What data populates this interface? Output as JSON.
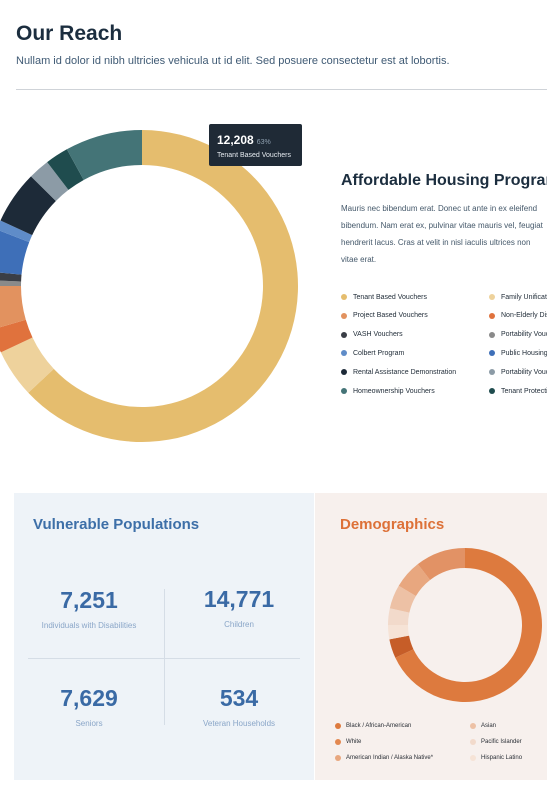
{
  "header": {
    "title": "Our Reach",
    "subtitle": "Nullam id dolor id nibh ultricies vehicula ut id elit. Sed posuere consectetur est at lobortis."
  },
  "tooltip": {
    "value": "12,208",
    "percent": "63%",
    "label": "Tenant Based Vouchers"
  },
  "program": {
    "title": "Affordable Housing Programs",
    "body_lines": [
      "Mauris nec bibendum erat. Donec ut ante in ex eleifend",
      "bibendum. Nam erat ex, pulvinar vitae mauris vel, feugiat",
      "hendrerit lacus. Cras at velit in nisl iaculis ultrices non",
      "vitae erat."
    ],
    "legend": [
      {
        "label": "Tenant Based Vouchers",
        "color": "#e5bd6e"
      },
      {
        "label": "Family Unification",
        "color": "#eed29c"
      },
      {
        "label": "Project Based Vouchers",
        "color": "#e2925f"
      },
      {
        "label": "Non-Elderly Disabled",
        "color": "#e0723d"
      },
      {
        "label": "VASH Vouchers",
        "color": "#3a3e46"
      },
      {
        "label": "Portability Vouchers",
        "color": "#8a8a8a"
      },
      {
        "label": "Colbert Program",
        "color": "#5f8cc8"
      },
      {
        "label": "Public Housing",
        "color": "#3e6fb8"
      },
      {
        "label": "Rental Assistance Demonstration",
        "color": "#1d2a38"
      },
      {
        "label": "Portability Vouchers",
        "color": "#8c9ba6"
      },
      {
        "label": "Homeownership Vouchers",
        "color": "#447477"
      },
      {
        "label": "Tenant Protection",
        "color": "#1f4c4e"
      }
    ]
  },
  "chart_data": [
    {
      "type": "pie",
      "slices": [
        {
          "label": "Tenant Based Vouchers",
          "value": 63,
          "color": "#e5bd6e"
        },
        {
          "label": "Family Unification",
          "value": 5,
          "color": "#eed29c"
        },
        {
          "label": "Non-Elderly Disabled",
          "value": 2.5,
          "color": "#e0723d"
        },
        {
          "label": "Project Based Vouchers",
          "value": 4.5,
          "color": "#e2925f"
        },
        {
          "label": "Portability Vouchers",
          "value": 0.6,
          "color": "#8a8a8a"
        },
        {
          "label": "VASH Vouchers",
          "value": 0.9,
          "color": "#3a3e46"
        },
        {
          "label": "Public Housing",
          "value": 4.4,
          "color": "#3e6fb8"
        },
        {
          "label": "Colbert Program",
          "value": 1,
          "color": "#5f8cc8"
        },
        {
          "label": "Rental Assistance Demonstration",
          "value": 5.5,
          "color": "#1d2a38"
        },
        {
          "label": "Portability Vouchers",
          "value": 2.2,
          "color": "#8c9ba6"
        },
        {
          "label": "Tenant Protection",
          "value": 2.4,
          "color": "#1f4c4e"
        },
        {
          "label": "Homeownership Vouchers",
          "value": 8,
          "color": "#447477"
        }
      ]
    },
    {
      "type": "pie",
      "slices": [
        {
          "label": "Black / African-American",
          "value": 68,
          "color": "#dd7a3e"
        },
        {
          "label": "White",
          "value": 4,
          "color": "#c65d28"
        },
        {
          "label": "Hispanic Latino",
          "value": 3,
          "color": "#f6e3d6"
        },
        {
          "label": "Pacific Islander",
          "value": 3.5,
          "color": "#f2dacb"
        },
        {
          "label": "Asian",
          "value": 5,
          "color": "#edc1a5"
        },
        {
          "label": "American Indian / Alaska Native*",
          "value": 6,
          "color": "#e8a77f"
        },
        {
          "label": "Asian",
          "value": 10.5,
          "color": "#e29265"
        }
      ]
    }
  ],
  "vulnerable": {
    "title": "Vulnerable Populations",
    "stats": [
      {
        "value": "7,251",
        "label": "Individuals with Disabilities"
      },
      {
        "value": "14,771",
        "label": "Children"
      },
      {
        "value": "7,629",
        "label": "Seniors"
      },
      {
        "value": "534",
        "label": "Veteran Households"
      }
    ]
  },
  "demographics": {
    "title": "Demographics",
    "legend": [
      {
        "label": "Black / African-American",
        "color": "#dd7a3e"
      },
      {
        "label": "Asian",
        "color": "#edc1a5"
      },
      {
        "label": "White",
        "color": "#e38850"
      },
      {
        "label": "Pacific Islander",
        "color": "#f2dacb"
      },
      {
        "label": "American Indian / Alaska Native*",
        "color": "#e8a77f"
      },
      {
        "label": "Hispanic Latino",
        "color": "#f6e3d6"
      }
    ]
  }
}
